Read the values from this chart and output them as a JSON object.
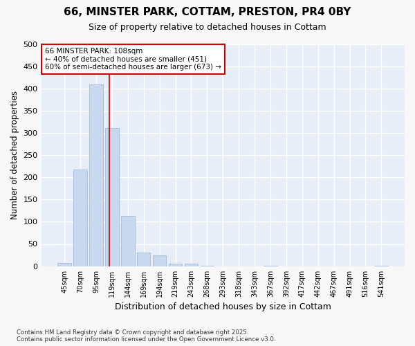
{
  "title_line1": "66, MINSTER PARK, COTTAM, PRESTON, PR4 0BY",
  "title_line2": "Size of property relative to detached houses in Cottam",
  "xlabel": "Distribution of detached houses by size in Cottam",
  "ylabel": "Number of detached properties",
  "categories": [
    "45sqm",
    "70sqm",
    "95sqm",
    "119sqm",
    "144sqm",
    "169sqm",
    "194sqm",
    "219sqm",
    "243sqm",
    "268sqm",
    "293sqm",
    "318sqm",
    "343sqm",
    "367sqm",
    "392sqm",
    "417sqm",
    "442sqm",
    "467sqm",
    "491sqm",
    "516sqm",
    "541sqm"
  ],
  "values": [
    7,
    218,
    410,
    312,
    113,
    31,
    25,
    5,
    5,
    1,
    0,
    0,
    0,
    1,
    0,
    0,
    0,
    0,
    0,
    0,
    1
  ],
  "bar_color": "#c8d8ee",
  "bar_edge_color": "#a8c0de",
  "vline_x": 2.85,
  "vline_color": "#cc0000",
  "annotation_text_line1": "66 MINSTER PARK: 108sqm",
  "annotation_text_line2": "← 40% of detached houses are smaller (451)",
  "annotation_text_line3": "60% of semi-detached houses are larger (673) →",
  "annotation_box_color": "#cc0000",
  "annotation_box_fill": "#ffffff",
  "ylim": [
    0,
    500
  ],
  "yticks": [
    0,
    50,
    100,
    150,
    200,
    250,
    300,
    350,
    400,
    450,
    500
  ],
  "fig_background_color": "#f8f8f8",
  "plot_background_color": "#e8eef8",
  "grid_color": "#ffffff",
  "footer_line1": "Contains HM Land Registry data © Crown copyright and database right 2025.",
  "footer_line2": "Contains public sector information licensed under the Open Government Licence v3.0."
}
